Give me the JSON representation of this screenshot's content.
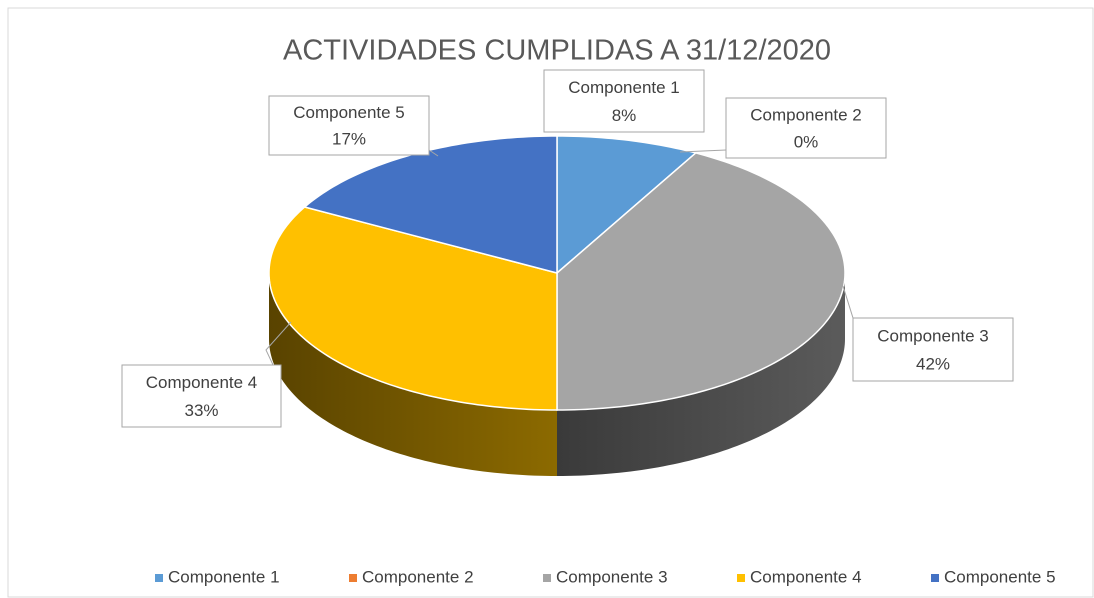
{
  "chart_data": {
    "type": "pie",
    "title": "ACTIVIDADES CUMPLIDAS A 31/12/2020",
    "categories": [
      "Componente 1",
      "Componente 2",
      "Componente 3",
      "Componente 4",
      "Componente 5"
    ],
    "values": [
      8,
      0,
      42,
      33,
      17
    ],
    "value_labels": [
      "8%",
      "0%",
      "42%",
      "33%",
      "17%"
    ],
    "colors": [
      "#5b9bd5",
      "#ed7d31",
      "#a5a5a5",
      "#ffc000",
      "#4472c4"
    ],
    "legend": "bottom"
  }
}
